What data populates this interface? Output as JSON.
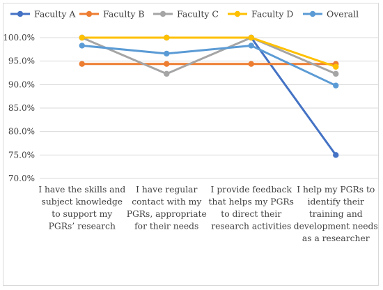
{
  "chart_data": {
    "type": "line",
    "title": "",
    "xlabel": "",
    "ylabel": "",
    "ylim": [
      70,
      100
    ],
    "yticks": [
      "70.0%",
      "75.0%",
      "80.0%",
      "85.0%",
      "90.0%",
      "95.0%",
      "100.0%"
    ],
    "grid": "horizontal",
    "legend_position": "top",
    "categories": [
      [
        "I have the skills and",
        "subject knowledge",
        "to support my",
        "PGRs’ research"
      ],
      [
        "I have regular",
        "contact with my",
        "PGRs, appropriate",
        "for their needs"
      ],
      [
        "I provide feedback",
        "that helps my PGRs",
        "to direct their",
        "research activities"
      ],
      [
        "I help my PGRs to",
        "identify their",
        "training and",
        "development needs",
        "as a researcher"
      ]
    ],
    "series": [
      {
        "name": "Faculty A",
        "color": "#4472c4",
        "values": [
          100.0,
          100.0,
          100.0,
          75.0
        ]
      },
      {
        "name": "Faculty B",
        "color": "#ed7d31",
        "values": [
          94.4,
          94.4,
          94.4,
          94.4
        ]
      },
      {
        "name": "Faculty C",
        "color": "#a5a5a5",
        "values": [
          100.0,
          92.3,
          100.0,
          92.3
        ]
      },
      {
        "name": "Faculty D",
        "color": "#ffc000",
        "values": [
          100.0,
          100.0,
          100.0,
          93.8
        ]
      },
      {
        "name": "Overall",
        "color": "#5b9bd5",
        "values": [
          98.3,
          96.6,
          98.3,
          89.8
        ]
      }
    ]
  }
}
